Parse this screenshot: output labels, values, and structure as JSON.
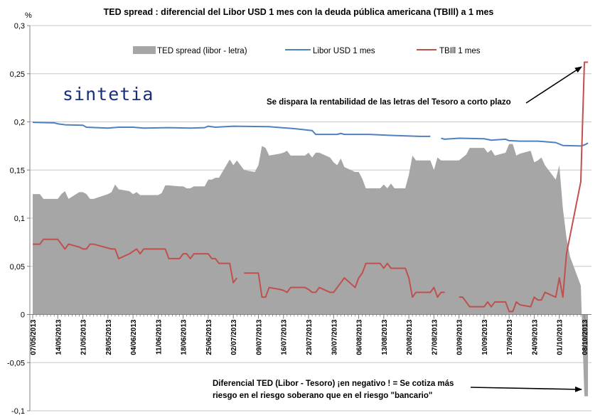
{
  "chart_data": {
    "type": "area",
    "title": "TED spread : diferencial del Libor USD 1 mes con la deuda pública americana (TBIll) a 1 mes",
    "ylabel": "%",
    "ylim": [
      -0.1,
      0.3
    ],
    "yticks": [
      "0,3",
      "0,25",
      "0,2",
      "0,15",
      "0,1",
      "0,05",
      "0",
      "-0,05",
      "-0,1"
    ],
    "ytick_values": [
      0.3,
      0.25,
      0.2,
      0.15,
      0.1,
      0.05,
      0,
      -0.05,
      -0.1
    ],
    "xtick_labels": [
      "07/05/2013",
      "14/05/2013",
      "21/05/2013",
      "28/05/2013",
      "04/06/2013",
      "11/06/2013",
      "18/06/2013",
      "25/06/2013",
      "02/07/2013",
      "09/07/2013",
      "16/07/2013",
      "23/07/2013",
      "30/07/2013",
      "06/08/2013",
      "13/08/2013",
      "20/08/2013",
      "27/08/2013",
      "03/09/2013",
      "10/09/2013",
      "17/09/2013",
      "24/09/2013",
      "01/10/2013",
      "08/10/2013"
    ],
    "start_date": "07/05/2013",
    "end_date": "08/10/2013",
    "grid": "horizontal",
    "legend_position": "top",
    "series": [
      {
        "name": "TED spread (libor - letra)",
        "kind": "area",
        "color": "#a6a6a6",
        "points": [
          [
            "07/05/2013",
            0.125
          ],
          [
            "09/05/2013",
            0.125
          ],
          [
            "10/05/2013",
            0.12
          ],
          [
            "13/05/2013",
            0.12
          ],
          [
            "14/05/2013",
            0.12
          ],
          [
            "15/05/2013",
            0.125
          ],
          [
            "16/05/2013",
            0.128
          ],
          [
            "17/05/2013",
            0.12
          ],
          [
            "20/05/2013",
            0.127
          ],
          [
            "21/05/2013",
            0.127
          ],
          [
            "22/05/2013",
            0.125
          ],
          [
            "23/05/2013",
            0.12
          ],
          [
            "24/05/2013",
            0.12
          ],
          [
            "28/05/2013",
            0.125
          ],
          [
            "29/05/2013",
            0.127
          ],
          [
            "30/05/2013",
            0.135
          ],
          [
            "31/05/2013",
            0.13
          ],
          [
            "03/06/2013",
            0.128
          ],
          [
            "04/06/2013",
            0.125
          ],
          [
            "05/06/2013",
            0.127
          ],
          [
            "06/06/2013",
            0.124
          ],
          [
            "07/06/2013",
            0.124
          ],
          [
            "11/06/2013",
            0.124
          ],
          [
            "12/06/2013",
            0.126
          ],
          [
            "13/06/2013",
            0.134
          ],
          [
            "14/06/2013",
            0.134
          ],
          [
            "17/06/2013",
            0.133
          ],
          [
            "18/06/2013",
            0.133
          ],
          [
            "19/06/2013",
            0.131
          ],
          [
            "20/06/2013",
            0.131
          ],
          [
            "21/06/2013",
            0.133
          ],
          [
            "24/06/2013",
            0.133
          ],
          [
            "25/06/2013",
            0.14
          ],
          [
            "26/06/2013",
            0.14
          ],
          [
            "27/06/2013",
            0.142
          ],
          [
            "28/06/2013",
            0.142
          ],
          [
            "01/07/2013",
            0.161
          ],
          [
            "02/07/2013",
            0.155
          ],
          [
            "03/07/2013",
            0.16
          ],
          [
            "05/07/2013",
            0.15
          ],
          [
            "08/07/2013",
            0.148
          ],
          [
            "09/07/2013",
            0.155
          ],
          [
            "10/07/2013",
            0.175
          ],
          [
            "11/07/2013",
            0.173
          ],
          [
            "12/07/2013",
            0.165
          ],
          [
            "15/07/2013",
            0.167
          ],
          [
            "16/07/2013",
            0.168
          ],
          [
            "17/07/2013",
            0.17
          ],
          [
            "18/07/2013",
            0.165
          ],
          [
            "19/07/2013",
            0.165
          ],
          [
            "22/07/2013",
            0.165
          ],
          [
            "23/07/2013",
            0.168
          ],
          [
            "24/07/2013",
            0.163
          ],
          [
            "25/07/2013",
            0.168
          ],
          [
            "26/07/2013",
            0.168
          ],
          [
            "29/07/2013",
            0.163
          ],
          [
            "30/07/2013",
            0.158
          ],
          [
            "31/07/2013",
            0.155
          ],
          [
            "01/08/2013",
            0.162
          ],
          [
            "02/08/2013",
            0.153
          ],
          [
            "05/08/2013",
            0.148
          ],
          [
            "06/08/2013",
            0.148
          ],
          [
            "07/08/2013",
            0.141
          ],
          [
            "08/08/2013",
            0.131
          ],
          [
            "09/08/2013",
            0.131
          ],
          [
            "12/08/2013",
            0.131
          ],
          [
            "13/08/2013",
            0.135
          ],
          [
            "14/08/2013",
            0.131
          ],
          [
            "15/08/2013",
            0.136
          ],
          [
            "16/08/2013",
            0.131
          ],
          [
            "19/08/2013",
            0.131
          ],
          [
            "20/08/2013",
            0.145
          ],
          [
            "21/08/2013",
            0.165
          ],
          [
            "22/08/2013",
            0.16
          ],
          [
            "23/08/2013",
            0.16
          ],
          [
            "26/08/2013",
            0.16
          ],
          [
            "27/08/2013",
            0.15
          ],
          [
            "28/08/2013",
            0.163
          ],
          [
            "29/08/2013",
            0.16
          ],
          [
            "30/08/2013",
            0.16
          ],
          [
            "03/09/2013",
            0.16
          ],
          [
            "04/09/2013",
            0.163
          ],
          [
            "05/09/2013",
            0.166
          ],
          [
            "06/09/2013",
            0.173
          ],
          [
            "09/09/2013",
            0.173
          ],
          [
            "10/09/2013",
            0.173
          ],
          [
            "11/09/2013",
            0.168
          ],
          [
            "12/09/2013",
            0.171
          ],
          [
            "13/09/2013",
            0.165
          ],
          [
            "16/09/2013",
            0.168
          ],
          [
            "17/09/2013",
            0.177
          ],
          [
            "18/09/2013",
            0.177
          ],
          [
            "19/09/2013",
            0.165
          ],
          [
            "20/09/2013",
            0.167
          ],
          [
            "23/09/2013",
            0.17
          ],
          [
            "24/09/2013",
            0.158
          ],
          [
            "25/09/2013",
            0.16
          ],
          [
            "26/09/2013",
            0.163
          ],
          [
            "27/09/2013",
            0.155
          ],
          [
            "30/09/2013",
            0.14
          ],
          [
            "01/10/2013",
            0.155
          ],
          [
            "02/10/2013",
            0.11
          ],
          [
            "03/10/2013",
            0.08
          ],
          [
            "04/10/2013",
            0.06
          ],
          [
            "07/10/2013",
            0.03
          ],
          [
            "08/10/2013",
            -0.085
          ],
          [
            "09/10/2013",
            -0.085
          ]
        ]
      },
      {
        "name": "Libor USD 1 mes",
        "kind": "line",
        "color": "#4f81bd",
        "points": [
          [
            "07/05/2013",
            0.1995
          ],
          [
            "13/05/2013",
            0.199
          ],
          [
            "14/05/2013",
            0.198
          ],
          [
            "16/05/2013",
            0.197
          ],
          [
            "21/05/2013",
            0.1965
          ],
          [
            "22/05/2013",
            0.1945
          ],
          [
            "28/05/2013",
            0.1935
          ],
          [
            "31/05/2013",
            0.1945
          ],
          [
            "04/06/2013",
            0.1945
          ],
          [
            "07/06/2013",
            0.1935
          ],
          [
            "14/06/2013",
            0.194
          ],
          [
            "20/06/2013",
            0.1935
          ],
          [
            "24/06/2013",
            0.194
          ],
          [
            "25/06/2013",
            0.1955
          ],
          [
            "27/06/2013",
            0.1945
          ],
          [
            "02/07/2013",
            0.1955
          ],
          [
            "12/07/2013",
            0.195
          ],
          [
            "19/07/2013",
            0.193
          ],
          [
            "24/07/2013",
            0.191
          ],
          [
            "25/07/2013",
            0.187
          ],
          [
            "31/07/2013",
            0.187
          ],
          [
            "01/08/2013",
            0.188
          ],
          [
            "02/08/2013",
            0.187
          ],
          [
            "09/08/2013",
            0.187
          ],
          [
            "15/08/2013",
            0.186
          ],
          [
            "23/08/2013",
            0.185
          ],
          [
            "26/08/2013",
            0.185
          ],
          [
            null,
            null
          ],
          [
            "29/08/2013",
            0.183
          ],
          [
            "30/08/2013",
            0.182
          ],
          [
            "03/09/2013",
            0.183
          ],
          [
            "10/09/2013",
            0.1825
          ],
          [
            "12/09/2013",
            0.181
          ],
          [
            "16/09/2013",
            0.182
          ],
          [
            "17/09/2013",
            0.1805
          ],
          [
            "20/09/2013",
            0.18
          ],
          [
            "25/09/2013",
            0.18
          ],
          [
            "30/09/2013",
            0.1785
          ],
          [
            "02/10/2013",
            0.1755
          ],
          [
            "07/10/2013",
            0.175
          ],
          [
            "08/10/2013",
            0.176
          ],
          [
            "09/10/2013",
            0.178
          ]
        ]
      },
      {
        "name": "TBIll 1 mes",
        "kind": "line",
        "color": "#c0504d",
        "points": [
          [
            "07/05/2013",
            0.073
          ],
          [
            "09/05/2013",
            0.073
          ],
          [
            "10/05/2013",
            0.078
          ],
          [
            "14/05/2013",
            0.078
          ],
          [
            "15/05/2013",
            0.073
          ],
          [
            "16/05/2013",
            0.068
          ],
          [
            "17/05/2013",
            0.073
          ],
          [
            "20/05/2013",
            0.07
          ],
          [
            "21/05/2013",
            0.068
          ],
          [
            "22/05/2013",
            0.068
          ],
          [
            "23/05/2013",
            0.073
          ],
          [
            "24/05/2013",
            0.073
          ],
          [
            "29/05/2013",
            0.068
          ],
          [
            "30/05/2013",
            0.068
          ],
          [
            "31/05/2013",
            0.058
          ],
          [
            "03/06/2013",
            0.063
          ],
          [
            "05/06/2013",
            0.068
          ],
          [
            "06/06/2013",
            0.063
          ],
          [
            "07/06/2013",
            0.068
          ],
          [
            "13/06/2013",
            0.068
          ],
          [
            "14/06/2013",
            0.058
          ],
          [
            "17/06/2013",
            0.058
          ],
          [
            "18/06/2013",
            0.063
          ],
          [
            "19/06/2013",
            0.063
          ],
          [
            "20/06/2013",
            0.058
          ],
          [
            "21/06/2013",
            0.063
          ],
          [
            "25/06/2013",
            0.063
          ],
          [
            "26/06/2013",
            0.058
          ],
          [
            "27/06/2013",
            0.058
          ],
          [
            "28/06/2013",
            0.053
          ],
          [
            "01/07/2013",
            0.053
          ],
          [
            "02/07/2013",
            0.033
          ],
          [
            "03/07/2013",
            0.038
          ],
          [
            null,
            null
          ],
          [
            "05/07/2013",
            0.043
          ],
          [
            "09/07/2013",
            0.043
          ],
          [
            "10/07/2013",
            0.018
          ],
          [
            "11/07/2013",
            0.018
          ],
          [
            "12/07/2013",
            0.028
          ],
          [
            "15/07/2013",
            0.026
          ],
          [
            "16/07/2013",
            0.025
          ],
          [
            "17/07/2013",
            0.023
          ],
          [
            "18/07/2013",
            0.028
          ],
          [
            "22/07/2013",
            0.028
          ],
          [
            "23/07/2013",
            0.026
          ],
          [
            "24/07/2013",
            0.023
          ],
          [
            "25/07/2013",
            0.023
          ],
          [
            "26/07/2013",
            0.028
          ],
          [
            "29/07/2013",
            0.023
          ],
          [
            "30/07/2013",
            0.023
          ],
          [
            "31/07/2013",
            0.028
          ],
          [
            "01/08/2013",
            0.033
          ],
          [
            "02/08/2013",
            0.038
          ],
          [
            "05/08/2013",
            0.028
          ],
          [
            "06/08/2013",
            0.038
          ],
          [
            "07/08/2013",
            0.043
          ],
          [
            "08/08/2013",
            0.053
          ],
          [
            "12/08/2013",
            0.053
          ],
          [
            "13/08/2013",
            0.048
          ],
          [
            "14/08/2013",
            0.053
          ],
          [
            "15/08/2013",
            0.048
          ],
          [
            "16/08/2013",
            0.048
          ],
          [
            "19/08/2013",
            0.048
          ],
          [
            "20/08/2013",
            0.038
          ],
          [
            "21/08/2013",
            0.018
          ],
          [
            "22/08/2013",
            0.023
          ],
          [
            "23/08/2013",
            0.023
          ],
          [
            "26/08/2013",
            0.023
          ],
          [
            "27/08/2013",
            0.028
          ],
          [
            "28/08/2013",
            0.018
          ],
          [
            "29/08/2013",
            0.023
          ],
          [
            "30/08/2013",
            0.023
          ],
          [
            null,
            null
          ],
          [
            "03/09/2013",
            0.018
          ],
          [
            "04/09/2013",
            0.018
          ],
          [
            "05/09/2013",
            0.013
          ],
          [
            "06/09/2013",
            0.008
          ],
          [
            "09/09/2013",
            0.008
          ],
          [
            "10/09/2013",
            0.008
          ],
          [
            "11/09/2013",
            0.013
          ],
          [
            "12/09/2013",
            0.008
          ],
          [
            "13/09/2013",
            0.013
          ],
          [
            "16/09/2013",
            0.013
          ],
          [
            "17/09/2013",
            0.003
          ],
          [
            "18/09/2013",
            0.003
          ],
          [
            "19/09/2013",
            0.013
          ],
          [
            "20/09/2013",
            0.01
          ],
          [
            "23/09/2013",
            0.008
          ],
          [
            "24/09/2013",
            0.018
          ],
          [
            "25/09/2013",
            0.015
          ],
          [
            "26/09/2013",
            0.015
          ],
          [
            "27/09/2013",
            0.023
          ],
          [
            "30/09/2013",
            0.018
          ],
          [
            "01/10/2013",
            0.038
          ],
          [
            "02/10/2013",
            0.018
          ],
          [
            "03/10/2013",
            0.063
          ],
          [
            "07/10/2013",
            0.138
          ],
          [
            "08/10/2013",
            0.262
          ],
          [
            "09/10/2013",
            0.262
          ]
        ]
      }
    ],
    "annotations": [
      {
        "text": "Se dispara la rentabilidad de las letras del Tesoro a corto plazo",
        "points_to": "TBIll 1 mes",
        "points_to_date": "08/10/2013"
      },
      {
        "text": [
          "Diferencial  TED (Libor - Tesoro) ¡en  negativo ! = Se cotiza más",
          "riesgo en el riesgo soberano que en el riesgo \"bancario\""
        ],
        "points_to": "TED spread (libor - letra)",
        "points_to_date": "08/10/2013"
      }
    ],
    "logo": "sintetia"
  }
}
